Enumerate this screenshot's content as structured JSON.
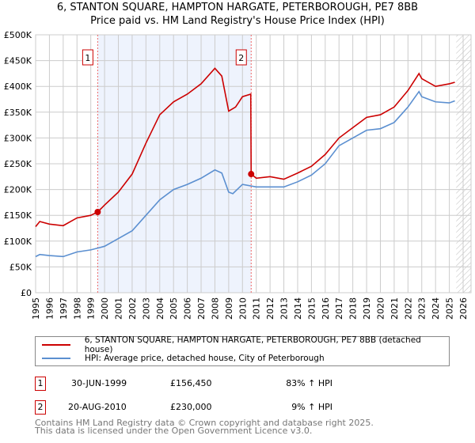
{
  "title_line1": "6, STANTON SQUARE, HAMPTON HARGATE, PETERBOROUGH, PE7 8BB",
  "title_line2": "Price paid vs. HM Land Registry's House Price Index (HPI)",
  "chart_data": {
    "type": "line",
    "title": "6, STANTON SQUARE, HAMPTON HARGATE, PETERBOROUGH, PE7 8BB — Price paid vs. HM Land Registry's House Price Index (HPI)",
    "xlim": [
      1995,
      2026
    ],
    "ylim": [
      0,
      500000
    ],
    "x_ticks": [
      "1995",
      "1996",
      "1997",
      "1998",
      "1999",
      "2000",
      "2001",
      "2002",
      "2003",
      "2004",
      "2005",
      "2006",
      "2007",
      "2008",
      "2009",
      "2010",
      "2011",
      "2012",
      "2013",
      "2014",
      "2015",
      "2016",
      "2017",
      "2018",
      "2019",
      "2020",
      "2021",
      "2022",
      "2023",
      "2024",
      "2025",
      "2026"
    ],
    "y_ticks": [
      "£0",
      "£50K",
      "£100K",
      "£150K",
      "£200K",
      "£250K",
      "£300K",
      "£350K",
      "£400K",
      "£450K",
      "£500K"
    ],
    "grid": true,
    "legend_position": "below",
    "series": [
      {
        "name": "6, STANTON SQUARE, HAMPTON HARGATE, PETERBOROUGH, PE7 8BB (detached house)",
        "color": "#cc0000",
        "x": [
          1995,
          1995.3,
          1996,
          1997,
          1998,
          1999,
          1999.5,
          2000,
          2001,
          2002,
          2003,
          2004,
          2005,
          2006,
          2007,
          2008,
          2008.5,
          2009,
          2009.5,
          2010,
          2010.6,
          2010.63,
          2011,
          2012,
          2013,
          2014,
          2015,
          2016,
          2017,
          2018,
          2019,
          2020,
          2021,
          2022,
          2022.8,
          2023,
          2024,
          2025,
          2025.4
        ],
        "y": [
          128000,
          138000,
          133000,
          130000,
          145000,
          150000,
          156450,
          170000,
          195000,
          230000,
          290000,
          345000,
          370000,
          385000,
          405000,
          435000,
          420000,
          352000,
          360000,
          380000,
          385000,
          230000,
          222000,
          225000,
          220000,
          232000,
          245000,
          268000,
          300000,
          320000,
          340000,
          345000,
          360000,
          392000,
          425000,
          415000,
          400000,
          405000,
          408000
        ]
      },
      {
        "name": "HPI: Average price, detached house, City of Peterborough",
        "color": "#5b8fd0",
        "x": [
          1995,
          1995.3,
          1996,
          1997,
          1998,
          1999,
          2000,
          2001,
          2002,
          2003,
          2004,
          2005,
          2006,
          2007,
          2008,
          2008.5,
          2009,
          2009.3,
          2010,
          2011,
          2012,
          2013,
          2014,
          2015,
          2016,
          2017,
          2018,
          2019,
          2020,
          2021,
          2022,
          2022.8,
          2023,
          2024,
          2025,
          2025.4
        ],
        "y": [
          70000,
          74000,
          72000,
          70000,
          79000,
          83000,
          90000,
          105000,
          120000,
          150000,
          180000,
          200000,
          210000,
          222000,
          238000,
          232000,
          195000,
          192000,
          210000,
          205000,
          205000,
          205000,
          215000,
          228000,
          250000,
          285000,
          300000,
          315000,
          318000,
          330000,
          360000,
          390000,
          380000,
          370000,
          368000,
          372000
        ]
      }
    ],
    "sales": [
      {
        "label": "1",
        "x": 1999.5,
        "y": 156450
      },
      {
        "label": "2",
        "x": 2010.63,
        "y": 230000
      }
    ],
    "shaded_range": [
      1999.5,
      2010.63
    ],
    "hatched_from": 2025.5
  },
  "legend": {
    "red": "6, STANTON SQUARE, HAMPTON HARGATE, PETERBOROUGH, PE7 8BB (detached house)",
    "blue": "HPI: Average price, detached house, City of Peterborough"
  },
  "transactions": [
    {
      "num": "1",
      "date": "30-JUN-1999",
      "price": "£156,450",
      "hpi": "83% ↑ HPI"
    },
    {
      "num": "2",
      "date": "20-AUG-2010",
      "price": "£230,000",
      "hpi": "9% ↑ HPI"
    }
  ],
  "footer1": "Contains HM Land Registry data © Crown copyright and database right 2025.",
  "footer2": "This data is licensed under the Open Government Licence v3.0."
}
